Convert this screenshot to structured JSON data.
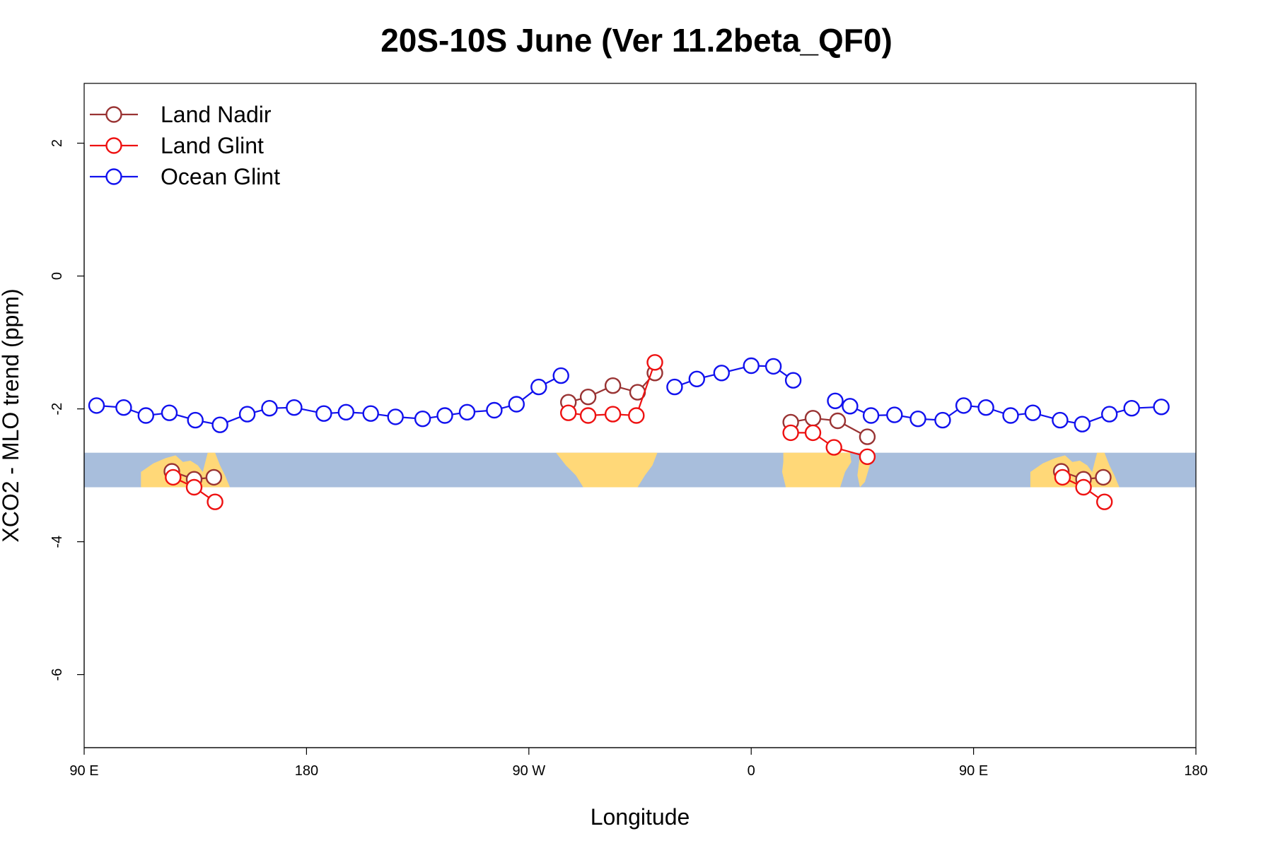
{
  "chart_data": {
    "type": "line",
    "title": "20S-10S June (Ver 11.2beta_QF0)",
    "xlabel": "Longitude",
    "ylabel": "XCO2 - MLO trend (ppm)",
    "x_range_deg_east_unwrapped": [
      90,
      540
    ],
    "ylim": [
      -7.1,
      2.9
    ],
    "x_ticks": [
      {
        "value": 90,
        "label": "90 E"
      },
      {
        "value": 180,
        "label": "180"
      },
      {
        "value": 270,
        "label": "90 W"
      },
      {
        "value": 360,
        "label": "0"
      },
      {
        "value": 450,
        "label": "90 E"
      },
      {
        "value": 540,
        "label": "180"
      }
    ],
    "y_ticks": [
      {
        "value": 2,
        "label": "2"
      },
      {
        "value": 0,
        "label": "0"
      },
      {
        "value": -2,
        "label": "-2"
      },
      {
        "value": -4,
        "label": "-4"
      },
      {
        "value": -6,
        "label": "-6"
      }
    ],
    "grid": false,
    "legend_position": "top-left",
    "background_map": {
      "lat_band": "20S-10S",
      "ocean_color": "#a8bedc",
      "land_color": "#ffd878",
      "y_top": -2.66,
      "y_bottom": -3.18
    },
    "series": [
      {
        "name": "Land Nadir",
        "color": "#993333",
        "segments": [
          [
            [
              125.5,
              -2.94
            ],
            [
              134.5,
              -3.06
            ],
            [
              142.5,
              -3.03
            ]
          ],
          [
            [
              286,
              -1.9
            ],
            [
              294,
              -1.82
            ],
            [
              304,
              -1.65
            ],
            [
              314,
              -1.75
            ],
            [
              321,
              -1.46
            ]
          ],
          [
            [
              376,
              -2.2
            ],
            [
              385,
              -2.14
            ],
            [
              395,
              -2.18
            ],
            [
              407,
              -2.42
            ]
          ],
          [
            [
              485.5,
              -2.94
            ],
            [
              494.5,
              -3.06
            ],
            [
              502.5,
              -3.03
            ]
          ]
        ]
      },
      {
        "name": "Land Glint",
        "color": "#ee1111",
        "segments": [
          [
            [
              126,
              -3.03
            ],
            [
              134.5,
              -3.18
            ],
            [
              143,
              -3.4
            ]
          ],
          [
            [
              286,
              -2.06
            ],
            [
              294,
              -2.1
            ],
            [
              304,
              -2.08
            ],
            [
              313.5,
              -2.1
            ],
            [
              321,
              -1.3
            ]
          ],
          [
            [
              376,
              -2.36
            ],
            [
              385,
              -2.36
            ],
            [
              393.5,
              -2.58
            ],
            [
              407,
              -2.72
            ]
          ],
          [
            [
              486,
              -3.03
            ],
            [
              494.5,
              -3.18
            ],
            [
              503,
              -3.4
            ]
          ]
        ]
      },
      {
        "name": "Ocean Glint",
        "color": "#1111ee",
        "segments": [
          [
            [
              95,
              -1.95
            ],
            [
              106,
              -1.98
            ],
            [
              115,
              -2.1
            ],
            [
              124.5,
              -2.06
            ],
            [
              135,
              -2.17
            ],
            [
              145,
              -2.24
            ],
            [
              156,
              -2.08
            ],
            [
              165,
              -1.99
            ],
            [
              175,
              -1.98
            ],
            [
              187,
              -2.07
            ],
            [
              196,
              -2.05
            ],
            [
              206,
              -2.07
            ],
            [
              216,
              -2.12
            ],
            [
              227,
              -2.15
            ],
            [
              236,
              -2.1
            ],
            [
              245,
              -2.05
            ],
            [
              256,
              -2.02
            ],
            [
              265,
              -1.93
            ],
            [
              274,
              -1.67
            ],
            [
              283,
              -1.5
            ]
          ],
          [
            [
              329,
              -1.67
            ],
            [
              338,
              -1.55
            ],
            [
              348,
              -1.46
            ],
            [
              360,
              -1.35
            ],
            [
              369,
              -1.36
            ],
            [
              377,
              -1.57
            ]
          ],
          [
            [
              394,
              -1.88
            ],
            [
              400,
              -1.96
            ],
            [
              408.5,
              -2.1
            ],
            [
              418,
              -2.09
            ],
            [
              427.5,
              -2.15
            ],
            [
              437.5,
              -2.17
            ],
            [
              446,
              -1.95
            ],
            [
              455,
              -1.98
            ],
            [
              465,
              -2.1
            ],
            [
              474,
              -2.06
            ],
            [
              485,
              -2.17
            ],
            [
              494,
              -2.23
            ],
            [
              505,
              -2.08
            ],
            [
              514,
              -1.99
            ],
            [
              526,
              -1.97
            ]
          ]
        ]
      }
    ]
  }
}
